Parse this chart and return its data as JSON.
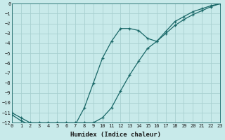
{
  "xlabel": "Humidex (Indice chaleur)",
  "background_color": "#c8eaea",
  "grid_color": "#a8d0d0",
  "line_color": "#1a6868",
  "xlim": [
    0,
    23
  ],
  "ylim": [
    -12,
    0
  ],
  "xticks": [
    0,
    1,
    2,
    3,
    4,
    5,
    6,
    7,
    8,
    9,
    10,
    11,
    12,
    13,
    14,
    15,
    16,
    17,
    18,
    19,
    20,
    21,
    22,
    23
  ],
  "yticks": [
    0,
    -1,
    -2,
    -3,
    -4,
    -5,
    -6,
    -7,
    -8,
    -9,
    -10,
    -11,
    -12
  ],
  "line1_x": [
    0,
    1,
    2,
    3,
    4,
    5,
    6,
    7,
    8,
    9,
    10,
    11,
    12,
    13,
    14,
    15,
    16,
    17,
    18,
    19,
    20,
    21,
    22,
    23
  ],
  "line1_y": [
    -11.0,
    -11.5,
    -12.0,
    -12.0,
    -12.0,
    -12.0,
    -12.0,
    -12.0,
    -12.0,
    -12.0,
    -11.5,
    -10.5,
    -8.8,
    -7.2,
    -5.8,
    -4.5,
    -3.8,
    -3.0,
    -2.2,
    -1.6,
    -1.1,
    -0.7,
    -0.3,
    0.0
  ],
  "line2_x": [
    0,
    1,
    2,
    3,
    4,
    5,
    6,
    7,
    8,
    9,
    10,
    11,
    12,
    13,
    14,
    15,
    16,
    17,
    18,
    19,
    20,
    21,
    22,
    23
  ],
  "line2_y": [
    -11.2,
    -11.8,
    -12.2,
    -12.2,
    -12.2,
    -12.2,
    -12.2,
    -12.2,
    -10.5,
    -8.0,
    -5.5,
    -3.8,
    -2.5,
    -2.5,
    -2.7,
    -3.5,
    -3.8,
    -2.8,
    -1.8,
    -1.3,
    -0.8,
    -0.5,
    -0.2,
    0.0
  ]
}
